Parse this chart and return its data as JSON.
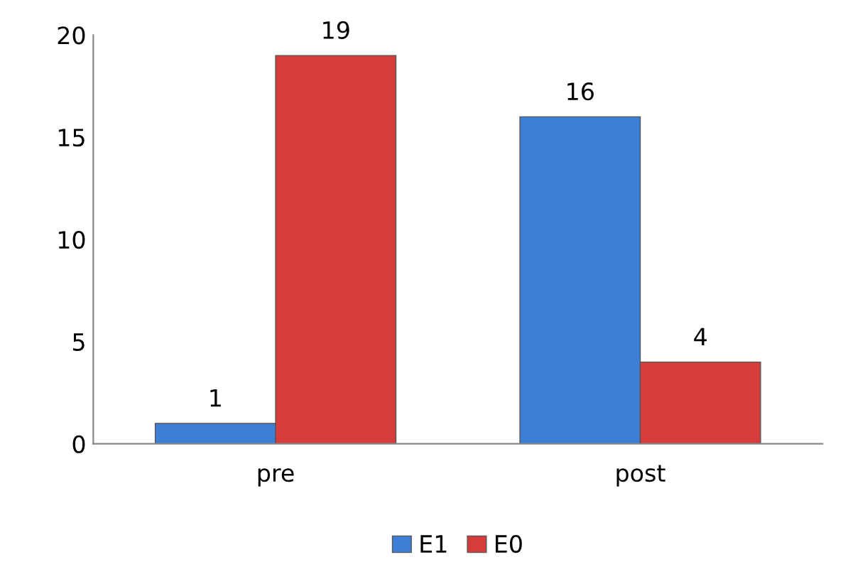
{
  "chart_data": {
    "type": "bar",
    "categories": [
      "pre",
      "post"
    ],
    "series": [
      {
        "name": "E1",
        "color": "#3d7fd6",
        "values": [
          1,
          16
        ]
      },
      {
        "name": "E0",
        "color": "#d63c3c",
        "values": [
          19,
          4
        ]
      }
    ],
    "ylim": [
      0,
      20
    ],
    "yticks": [
      0,
      5,
      10,
      15,
      20
    ],
    "grid": false,
    "legend": "bottom",
    "data_labels": true
  }
}
